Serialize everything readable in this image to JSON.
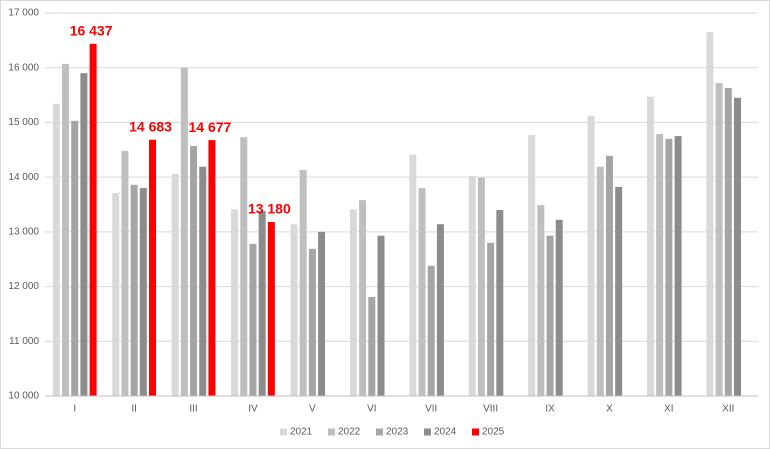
{
  "chart_data": {
    "type": "bar",
    "categories": [
      "I",
      "II",
      "III",
      "IV",
      "V",
      "VI",
      "VII",
      "VIII",
      "IX",
      "X",
      "XI",
      "XII"
    ],
    "series": [
      {
        "name": "2021",
        "color": "#d9d9d9",
        "values": [
          15340,
          13710,
          14060,
          13410,
          13140,
          13410,
          14410,
          14020,
          14770,
          15120,
          15470,
          16650
        ]
      },
      {
        "name": "2022",
        "color": "#bfbfbf",
        "values": [
          16070,
          14480,
          16000,
          14730,
          14130,
          13580,
          13800,
          13990,
          13490,
          14190,
          14790,
          15720
        ]
      },
      {
        "name": "2023",
        "color": "#a5a5a5",
        "values": [
          15030,
          13860,
          14570,
          12780,
          12690,
          11810,
          12380,
          12800,
          12930,
          14390,
          14700,
          15630
        ]
      },
      {
        "name": "2024",
        "color": "#8c8c8c",
        "values": [
          15900,
          13800,
          14190,
          13380,
          13000,
          12930,
          13140,
          13400,
          13220,
          13820,
          14750,
          15450
        ]
      },
      {
        "name": "2025",
        "color": "#ff0000",
        "values": [
          16437,
          14683,
          14677,
          13180,
          null,
          null,
          null,
          null,
          null,
          null,
          null,
          null
        ],
        "value_labels": [
          "16 437",
          "14 683",
          "14 677",
          "13 180",
          null,
          null,
          null,
          null,
          null,
          null,
          null,
          null
        ]
      }
    ],
    "ylim": [
      10000,
      17000
    ],
    "yticks": [
      {
        "value": 10000,
        "label": "10 000"
      },
      {
        "value": 11000,
        "label": "11 000"
      },
      {
        "value": 12000,
        "label": "12 000"
      },
      {
        "value": 13000,
        "label": "13 000"
      },
      {
        "value": 14000,
        "label": "14 000"
      },
      {
        "value": 15000,
        "label": "15 000"
      },
      {
        "value": 16000,
        "label": "16 000"
      },
      {
        "value": 17000,
        "label": "17 000"
      }
    ],
    "grid": true,
    "legend": "bottom"
  }
}
